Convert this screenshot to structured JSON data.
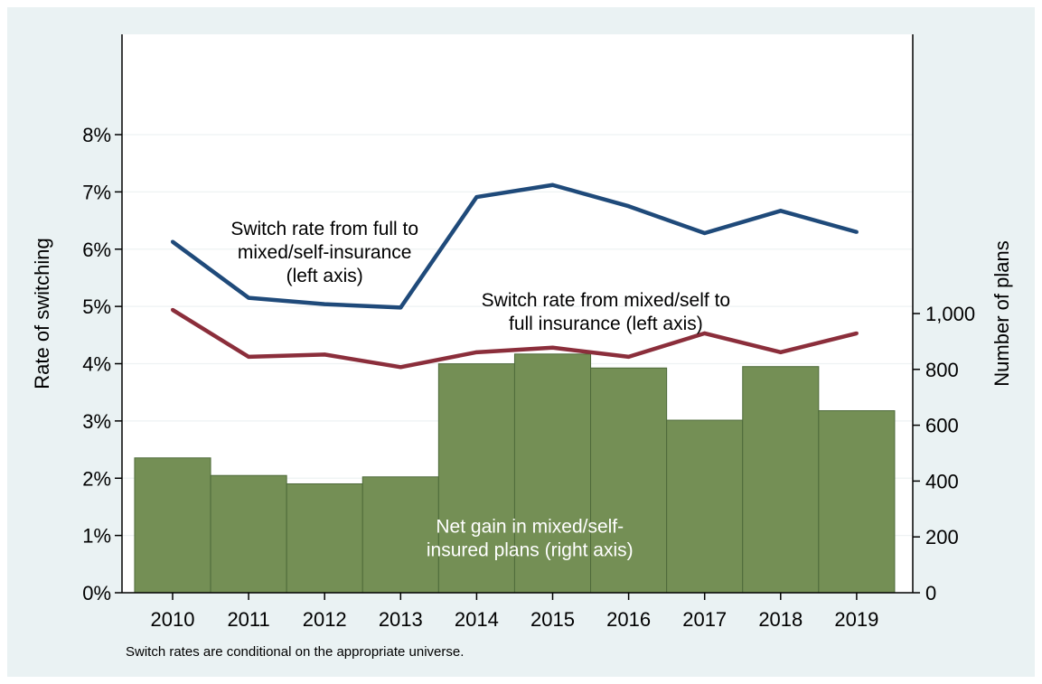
{
  "chart_data": {
    "type": "bar",
    "categories": [
      "2010",
      "2011",
      "2012",
      "2013",
      "2014",
      "2015",
      "2016",
      "2017",
      "2018",
      "2019"
    ],
    "ylabel_left": "Rate of switching",
    "ylabel_right": "Number of plans",
    "ylim_left": [
      0,
      8
    ],
    "yticks_left": [
      {
        "value": 0,
        "label": "0%"
      },
      {
        "value": 1,
        "label": "1%"
      },
      {
        "value": 2,
        "label": "2%"
      },
      {
        "value": 3,
        "label": "3%"
      },
      {
        "value": 4,
        "label": "4%"
      },
      {
        "value": 5,
        "label": "5%"
      },
      {
        "value": 6,
        "label": "6%"
      },
      {
        "value": 7,
        "label": "7%"
      },
      {
        "value": 8,
        "label": "8%"
      }
    ],
    "yticks_right": [
      {
        "value": 0,
        "label": "0"
      },
      {
        "value": 200,
        "label": "200"
      },
      {
        "value": 400,
        "label": "400"
      },
      {
        "value": 600,
        "label": "600"
      },
      {
        "value": 800,
        "label": "800"
      },
      {
        "value": 1000,
        "label": "1,000"
      }
    ],
    "right_axis_max": 2000,
    "grid": true,
    "legend": "none",
    "series": [
      {
        "axis": "right",
        "mark": "bar",
        "color": "#748f55",
        "values": [
          483,
          420,
          390,
          415,
          820,
          855,
          805,
          618,
          810,
          652
        ]
      },
      {
        "axis": "left",
        "mark": "line",
        "color": "#1f4a7a",
        "values": [
          6.13,
          5.15,
          5.04,
          4.98,
          6.91,
          7.12,
          6.75,
          6.28,
          6.67,
          6.3
        ]
      },
      {
        "axis": "left",
        "mark": "line",
        "color": "#8b2e3b",
        "values": [
          4.94,
          4.12,
          4.16,
          3.94,
          4.2,
          4.28,
          4.12,
          4.53,
          4.2,
          4.53
        ]
      }
    ],
    "annotations": [
      {
        "lines": [
          "Switch rate from full to",
          "mixed/self-insurance",
          "(left axis)"
        ],
        "color": "#000000",
        "anchor_x": 2012.0,
        "anchor_y": 6.25
      },
      {
        "lines": [
          "Switch rate from mixed/self to",
          "full insurance (left axis)"
        ],
        "color": "#000000",
        "anchor_x": 2015.7,
        "anchor_y": 5.0
      },
      {
        "lines": [
          "Net gain in mixed/self-",
          "insured plans (right axis)"
        ],
        "color": "#ffffff",
        "anchor_x": 2014.7,
        "anchor_y": 1.05
      }
    ],
    "note": "Switch rates are conditional on the appropriate universe."
  }
}
